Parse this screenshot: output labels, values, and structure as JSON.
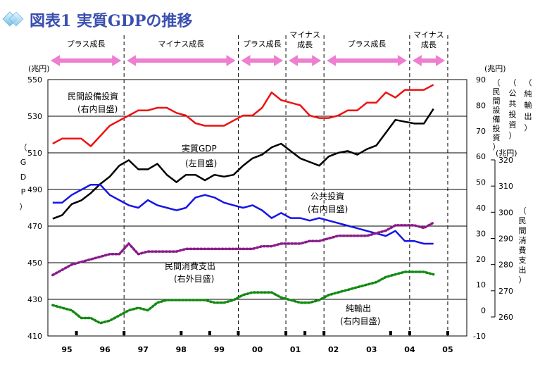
{
  "title": "図表1 実質GDPの推移",
  "chart_data": {
    "type": "line",
    "x_labels": [
      "95",
      "96",
      "97",
      "98",
      "99",
      "00",
      "01",
      "02",
      "03",
      "04",
      "05"
    ],
    "phases": [
      {
        "label": "プラス成長",
        "lines": [
          "プラス成長"
        ],
        "quarters": [
          0,
          8
        ]
      },
      {
        "label": "マイナス成長",
        "lines": [
          "マイナス成長"
        ],
        "quarters": [
          8,
          20
        ]
      },
      {
        "label": "プラス成長",
        "lines": [
          "プラス成長"
        ],
        "quarters": [
          20,
          25
        ]
      },
      {
        "label": "マイナス成長",
        "lines": [
          "マイナス",
          "成長"
        ],
        "quarters": [
          25,
          29
        ]
      },
      {
        "label": "プラス成長",
        "lines": [
          "プラス成長"
        ],
        "quarters": [
          29,
          38
        ]
      },
      {
        "label": "マイナス成長",
        "lines": [
          "マイナス",
          "成長"
        ],
        "quarters": [
          38,
          42
        ]
      }
    ],
    "axes": {
      "left": {
        "label": "GDP",
        "unit": "(兆円)",
        "ticks": [
          "550",
          "530",
          "510",
          "490",
          "470",
          "450",
          "430",
          "410"
        ],
        "ylim": [
          410,
          550
        ]
      },
      "right_inner": {
        "label": "民間設備投資",
        "label2": "公共投資",
        "label3": "純輸出",
        "unit": "(兆円)",
        "ticks": [
          "90",
          "80",
          "70",
          "60",
          "50",
          "40",
          "30",
          "20",
          "10",
          "0",
          "-10"
        ],
        "ylim": [
          -10,
          90
        ]
      },
      "right_outer": {
        "label": "民間消費支出",
        "unit": "(兆円)",
        "ticks": [
          "320",
          "310",
          "300",
          "290",
          "280",
          "270",
          "260"
        ],
        "ylim": [
          260,
          320
        ]
      }
    },
    "series": [
      {
        "name": "実質GDP",
        "axis_note": "(左目盛)",
        "color": "#000000",
        "style": "solid",
        "axis": "left",
        "values": [
          474,
          476,
          482,
          484,
          488,
          493,
          497,
          503,
          506,
          501,
          501,
          504,
          498,
          494,
          498,
          498,
          495,
          498,
          497,
          498,
          503,
          507,
          509,
          513,
          515,
          511,
          507,
          505,
          503,
          508,
          510,
          511,
          509,
          512,
          514,
          521,
          528,
          527,
          526,
          526,
          534
        ]
      },
      {
        "name": "民間設備投資",
        "axis_note": "(右内目盛)",
        "color": "#ee1111",
        "style": "solid",
        "axis": "right_inner",
        "values": [
          65,
          67,
          67,
          67,
          64,
          68,
          72,
          74,
          76,
          78,
          78,
          79,
          79,
          77,
          76,
          73,
          72,
          72,
          72,
          74,
          76,
          76,
          79,
          85,
          82,
          81,
          80,
          76,
          75,
          75,
          76,
          78,
          78,
          81,
          81,
          85,
          83,
          86,
          86,
          86,
          88
        ]
      },
      {
        "name": "公共投資",
        "axis_note": "(右内目盛)",
        "color": "#1515e6",
        "style": "solid",
        "axis": "right_inner",
        "values": [
          42,
          42,
          45,
          47,
          49,
          49,
          45,
          43,
          41,
          40,
          43,
          41,
          40,
          39,
          40,
          44,
          45,
          44,
          42,
          41,
          40,
          41,
          39,
          36,
          38,
          36,
          36,
          35,
          36,
          35,
          34,
          33,
          32,
          31,
          30,
          29,
          31,
          27,
          27,
          26,
          26
        ]
      },
      {
        "name": "民間消費支出",
        "axis_note": "(右外目盛)",
        "color": "#8a1c8a",
        "style": "dotted",
        "axis": "right_outer",
        "values": [
          276,
          278,
          280,
          281,
          282,
          283,
          284,
          284,
          288,
          284,
          285,
          285,
          285,
          285,
          286,
          286,
          286,
          286,
          286,
          286,
          286,
          286,
          287,
          287,
          288,
          288,
          288,
          289,
          289,
          290,
          291,
          291,
          291,
          291,
          292,
          293,
          295,
          295,
          295,
          294,
          296
        ]
      },
      {
        "name": "純輸出",
        "axis_note": "(右内目盛)",
        "color": "#128a12",
        "style": "dotted",
        "axis": "right_inner",
        "values": [
          2,
          1,
          0,
          -3,
          -3,
          -5,
          -4,
          -2,
          0,
          1,
          0,
          3,
          4,
          4,
          4,
          4,
          4,
          3,
          3,
          4,
          6,
          7,
          7,
          7,
          5,
          4,
          3,
          3,
          4,
          6,
          7,
          8,
          9,
          10,
          11,
          13,
          14,
          15,
          15,
          15,
          14
        ]
      }
    ]
  }
}
